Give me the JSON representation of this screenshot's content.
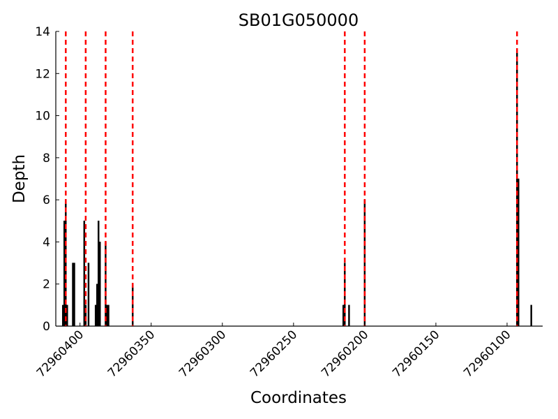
{
  "chart_data": {
    "type": "bar",
    "title": "SB01G050000",
    "xlabel": "Coordinates",
    "ylabel": "Depth",
    "xlim": [
      72960417,
      72960075
    ],
    "ylim": [
      0,
      14
    ],
    "x_reversed": true,
    "y_ticks": [
      0,
      2,
      4,
      6,
      8,
      10,
      12,
      14
    ],
    "x_ticks": [
      72960400,
      72960350,
      72960300,
      72960250,
      72960200,
      72960150,
      72960100
    ],
    "x_tick_labels": [
      "72960400",
      "72960350",
      "72960300",
      "72960250",
      "72960200",
      "72960150",
      "72960100"
    ],
    "bar_color": "#000000",
    "guide_line_color": "#ff0000",
    "bars": [
      {
        "x": 72960412,
        "value": 1
      },
      {
        "x": 72960411,
        "value": 5
      },
      {
        "x": 72960410,
        "value": 6
      },
      {
        "x": 72960409,
        "value": 1
      },
      {
        "x": 72960405,
        "value": 3
      },
      {
        "x": 72960404,
        "value": 3
      },
      {
        "x": 72960397,
        "value": 5
      },
      {
        "x": 72960396,
        "value": 1
      },
      {
        "x": 72960394,
        "value": 3
      },
      {
        "x": 72960389,
        "value": 1
      },
      {
        "x": 72960388,
        "value": 2
      },
      {
        "x": 72960387,
        "value": 5
      },
      {
        "x": 72960386,
        "value": 4
      },
      {
        "x": 72960382,
        "value": 4
      },
      {
        "x": 72960381,
        "value": 1
      },
      {
        "x": 72960380,
        "value": 1
      },
      {
        "x": 72960363,
        "value": 2
      },
      {
        "x": 72960215,
        "value": 1
      },
      {
        "x": 72960214,
        "value": 3
      },
      {
        "x": 72960211,
        "value": 1
      },
      {
        "x": 72960200,
        "value": 6
      },
      {
        "x": 72960093,
        "value": 13
      },
      {
        "x": 72960092,
        "value": 7
      },
      {
        "x": 72960083,
        "value": 1
      }
    ],
    "guide_lines": [
      72960410,
      72960396,
      72960382,
      72960363,
      72960214,
      72960200,
      72960093
    ]
  }
}
